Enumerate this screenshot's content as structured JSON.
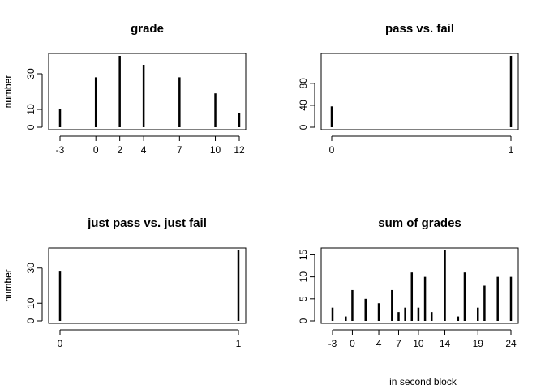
{
  "chart_data": [
    {
      "type": "bar",
      "title": "grade",
      "ylabel": "number",
      "xlabel": "",
      "x": [
        -3,
        0,
        2,
        4,
        7,
        10,
        12
      ],
      "values": [
        10,
        28,
        40,
        35,
        28,
        19,
        8
      ],
      "x_ticks": [
        -3,
        0,
        2,
        4,
        7,
        10,
        12
      ],
      "y_ticks": [
        0,
        10,
        30
      ],
      "xlim": [
        -3,
        12
      ],
      "ylim": [
        0,
        40
      ]
    },
    {
      "type": "bar",
      "title": "pass vs. fail",
      "ylabel": "number",
      "xlabel": "",
      "x": [
        0,
        1
      ],
      "values": [
        38,
        130
      ],
      "x_ticks": [
        0,
        1
      ],
      "y_ticks": [
        0,
        40,
        80
      ],
      "xlim": [
        0,
        1
      ],
      "ylim": [
        0,
        130
      ]
    },
    {
      "type": "bar",
      "title": "just pass vs. just fail",
      "ylabel": "number",
      "xlabel": "",
      "x": [
        0,
        1
      ],
      "values": [
        28,
        40
      ],
      "x_ticks": [
        0,
        1
      ],
      "y_ticks": [
        0,
        10,
        30
      ],
      "xlim": [
        0,
        1
      ],
      "ylim": [
        0,
        40
      ]
    },
    {
      "type": "bar",
      "title": "sum of grades",
      "ylabel": "number",
      "xlabel": "in second block",
      "x": [
        -3,
        -1,
        0,
        2,
        4,
        6,
        7,
        8,
        9,
        10,
        11,
        12,
        14,
        16,
        17,
        19,
        20,
        22,
        24
      ],
      "values": [
        3,
        1,
        7,
        5,
        4,
        7,
        2,
        3,
        11,
        3,
        10,
        2,
        16,
        1,
        11,
        3,
        8,
        10,
        10
      ],
      "x_ticks": [
        -3,
        0,
        4,
        7,
        10,
        14,
        19,
        24
      ],
      "y_ticks": [
        0,
        5,
        10,
        15
      ],
      "xlim": [
        -3,
        24
      ],
      "ylim": [
        0,
        16
      ]
    }
  ]
}
